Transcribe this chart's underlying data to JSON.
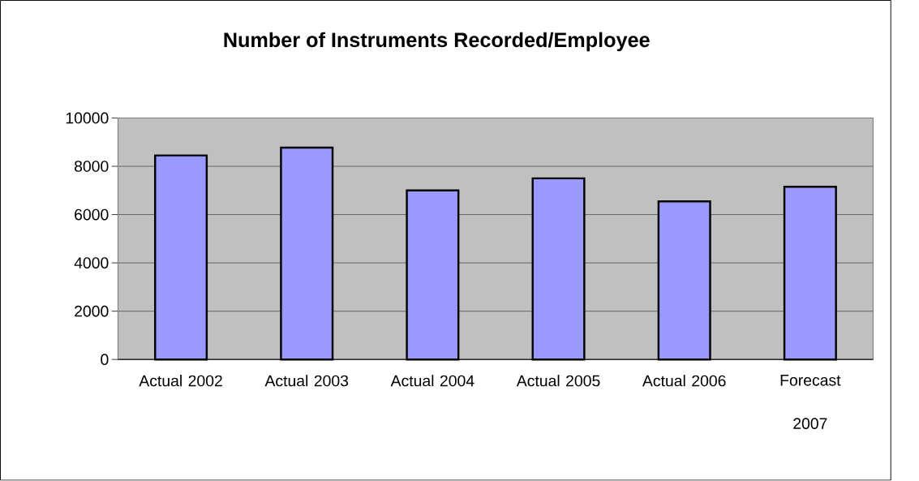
{
  "chart_data": {
    "type": "bar",
    "title": "Number of Instruments Recorded/Employee",
    "categories": [
      "Actual 2002",
      "Actual 2003",
      "Actual 2004",
      "Actual 2005",
      "Actual 2006",
      "Forecast 2007"
    ],
    "values": [
      8450,
      8770,
      7000,
      7500,
      6550,
      7150
    ],
    "color": "#9999ff",
    "ylim": [
      0,
      10000
    ],
    "yticks": [
      0,
      2000,
      4000,
      6000,
      8000,
      10000
    ],
    "grid": "y"
  }
}
